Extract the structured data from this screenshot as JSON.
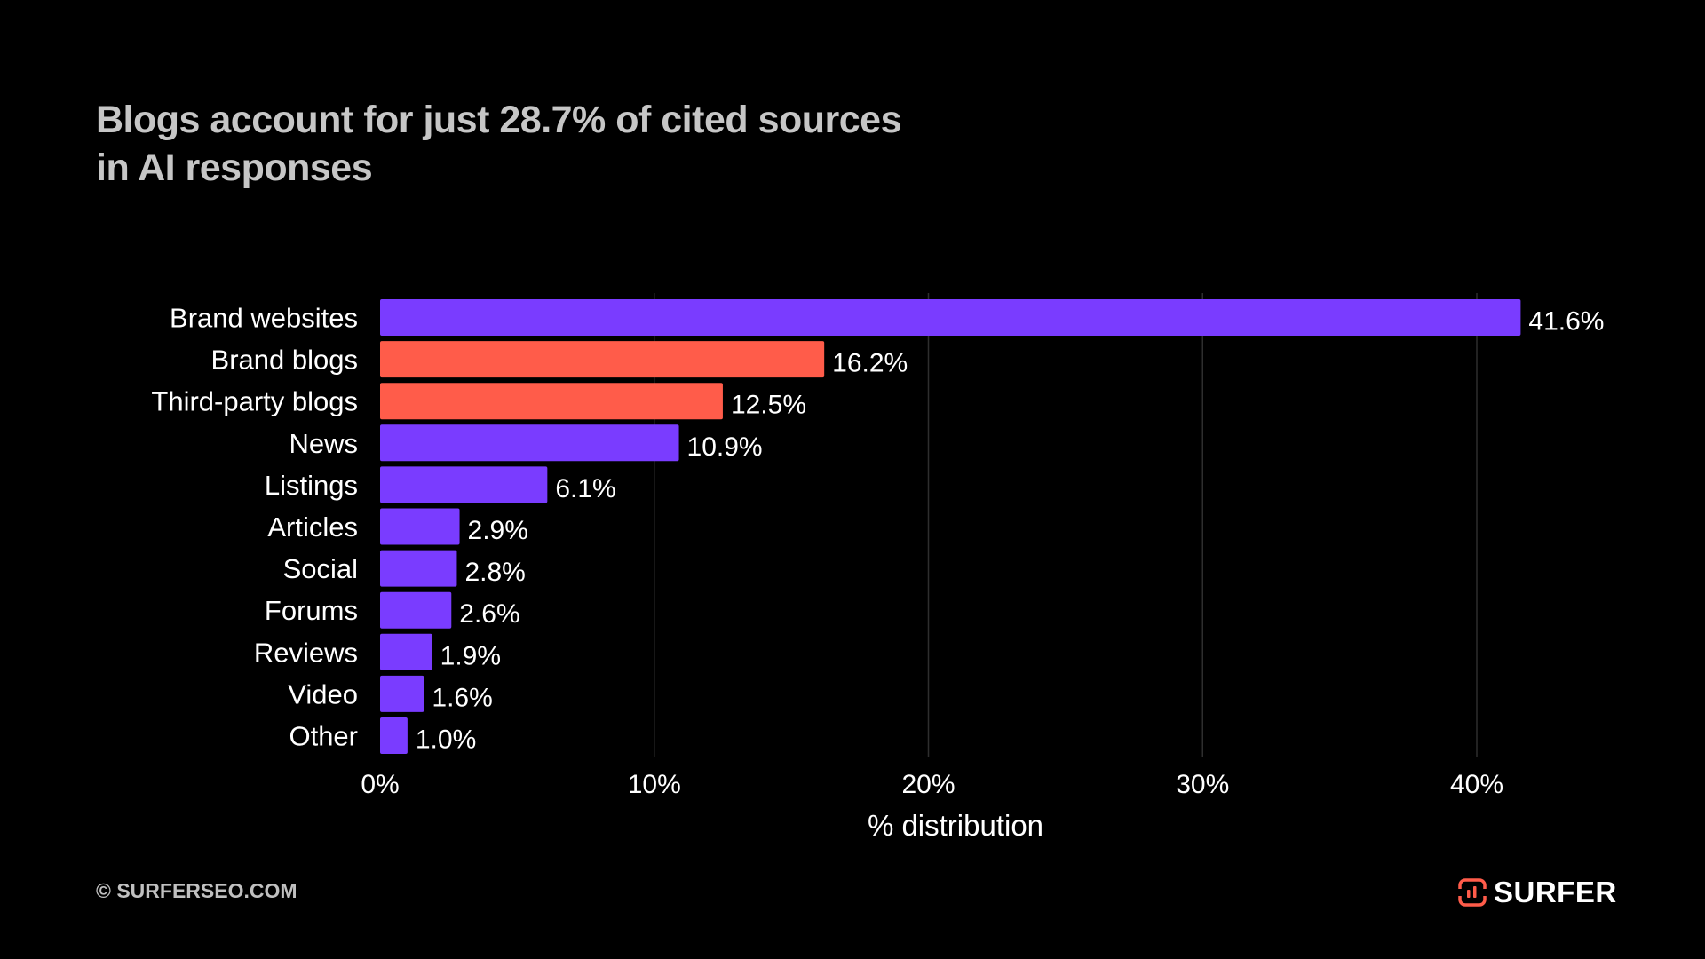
{
  "title": {
    "line1": "Blogs account for just 28.7% of cited sources",
    "line2": "in AI responses"
  },
  "footer": {
    "copyright": "© SURFERSEO.COM",
    "logo_text": "SURFER",
    "logo_icon": "surfer-logo-icon"
  },
  "colors": {
    "background": "#000000",
    "primary_bar": "#7a3cff",
    "highlight_bar": "#ff5c4a",
    "gridline": "#2e2e2e",
    "title": "#c6c6c6"
  },
  "chart_data": {
    "type": "bar",
    "orientation": "horizontal",
    "title": "Blogs account for just 28.7% of cited sources in AI responses",
    "categories": [
      "Brand websites",
      "Brand blogs",
      "Third-party blogs",
      "News",
      "Listings",
      "Articles",
      "Social",
      "Forums",
      "Reviews",
      "Video",
      "Other"
    ],
    "values": [
      41.6,
      16.2,
      12.5,
      10.9,
      6.1,
      2.9,
      2.8,
      2.6,
      1.9,
      1.6,
      1.0
    ],
    "data_labels": [
      "41.6%",
      "16.2%",
      "12.5%",
      "10.9%",
      "6.1%",
      "2.9%",
      "2.8%",
      "2.6%",
      "1.9%",
      "1.6%",
      "1.0%"
    ],
    "highlighted": [
      false,
      true,
      true,
      false,
      false,
      false,
      false,
      false,
      false,
      false,
      false
    ],
    "xlabel": "% distribution",
    "ylabel": "",
    "xlim": [
      0,
      45
    ],
    "xticks": [
      0,
      10,
      20,
      30,
      40
    ],
    "xtick_labels": [
      "0%",
      "10%",
      "20%",
      "30%",
      "40%"
    ],
    "grid": "vertical",
    "legend": "none"
  }
}
